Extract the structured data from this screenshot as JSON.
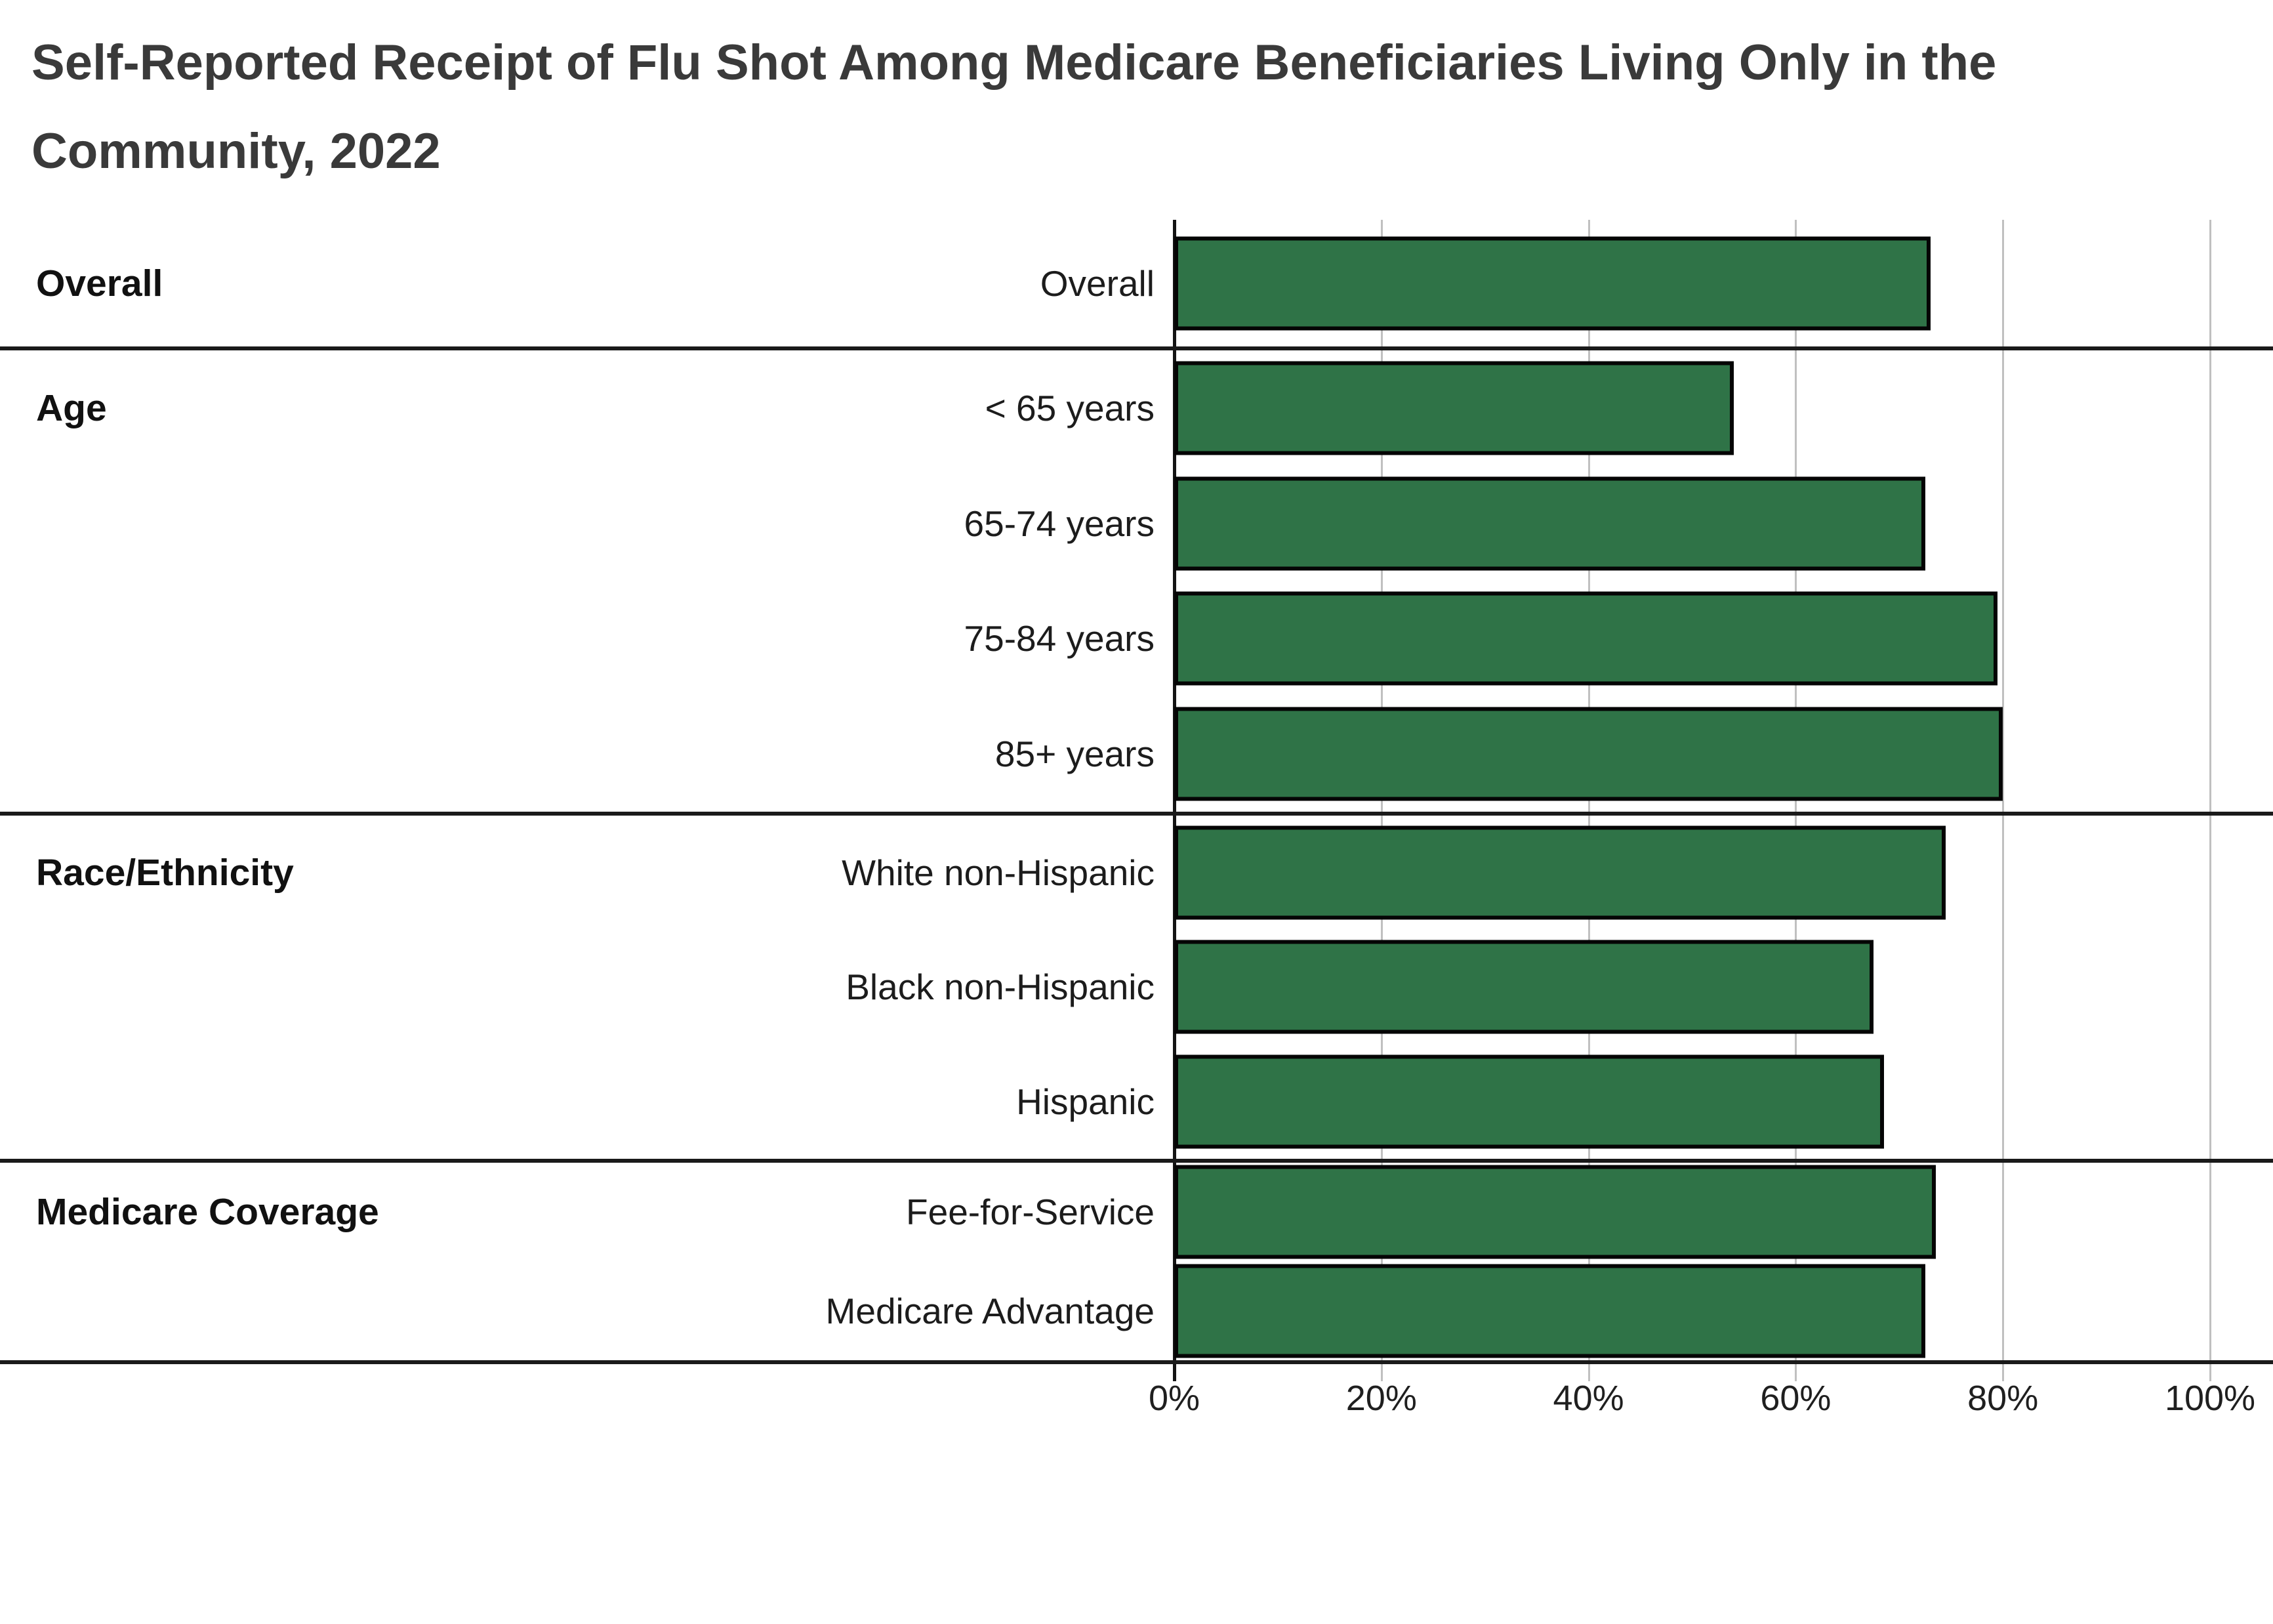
{
  "title": "Self-Reported Receipt of Flu Shot Among Medicare Beneficiaries Living Only in the Community, 2022",
  "chart_data": {
    "type": "bar",
    "orientation": "horizontal",
    "title": "Self-Reported Receipt of Flu Shot Among Medicare Beneficiaries Living Only in the Community, 2022",
    "xlabel": "",
    "ylabel": "",
    "xlim": [
      0,
      100
    ],
    "x_tick_labels": [
      "0%",
      "20%",
      "40%",
      "60%",
      "80%",
      "100%"
    ],
    "x_tick_values": [
      0,
      20,
      40,
      60,
      80,
      100
    ],
    "grid": true,
    "bar_color": "#2F7347",
    "bar_border_color": "#050505",
    "unit": "percent",
    "sections": [
      {
        "group": "Overall",
        "rows": [
          {
            "label": "Overall",
            "value": 73
          }
        ]
      },
      {
        "group": "Age",
        "rows": [
          {
            "label": "< 65 years",
            "value": 54
          },
          {
            "label": "65-74 years",
            "value": 72.5
          },
          {
            "label": "75-84 years",
            "value": 79.5
          },
          {
            "label": "85+ years",
            "value": 80
          }
        ]
      },
      {
        "group": "Race/Ethnicity",
        "rows": [
          {
            "label": "White non-Hispanic",
            "value": 74.5
          },
          {
            "label": "Black non-Hispanic",
            "value": 67.5
          },
          {
            "label": "Hispanic",
            "value": 68.5
          }
        ]
      },
      {
        "group": "Medicare Coverage",
        "rows": [
          {
            "label": "Fee-for-Service",
            "value": 73.5
          },
          {
            "label": "Medicare Advantage",
            "value": 72.5
          }
        ]
      }
    ]
  }
}
